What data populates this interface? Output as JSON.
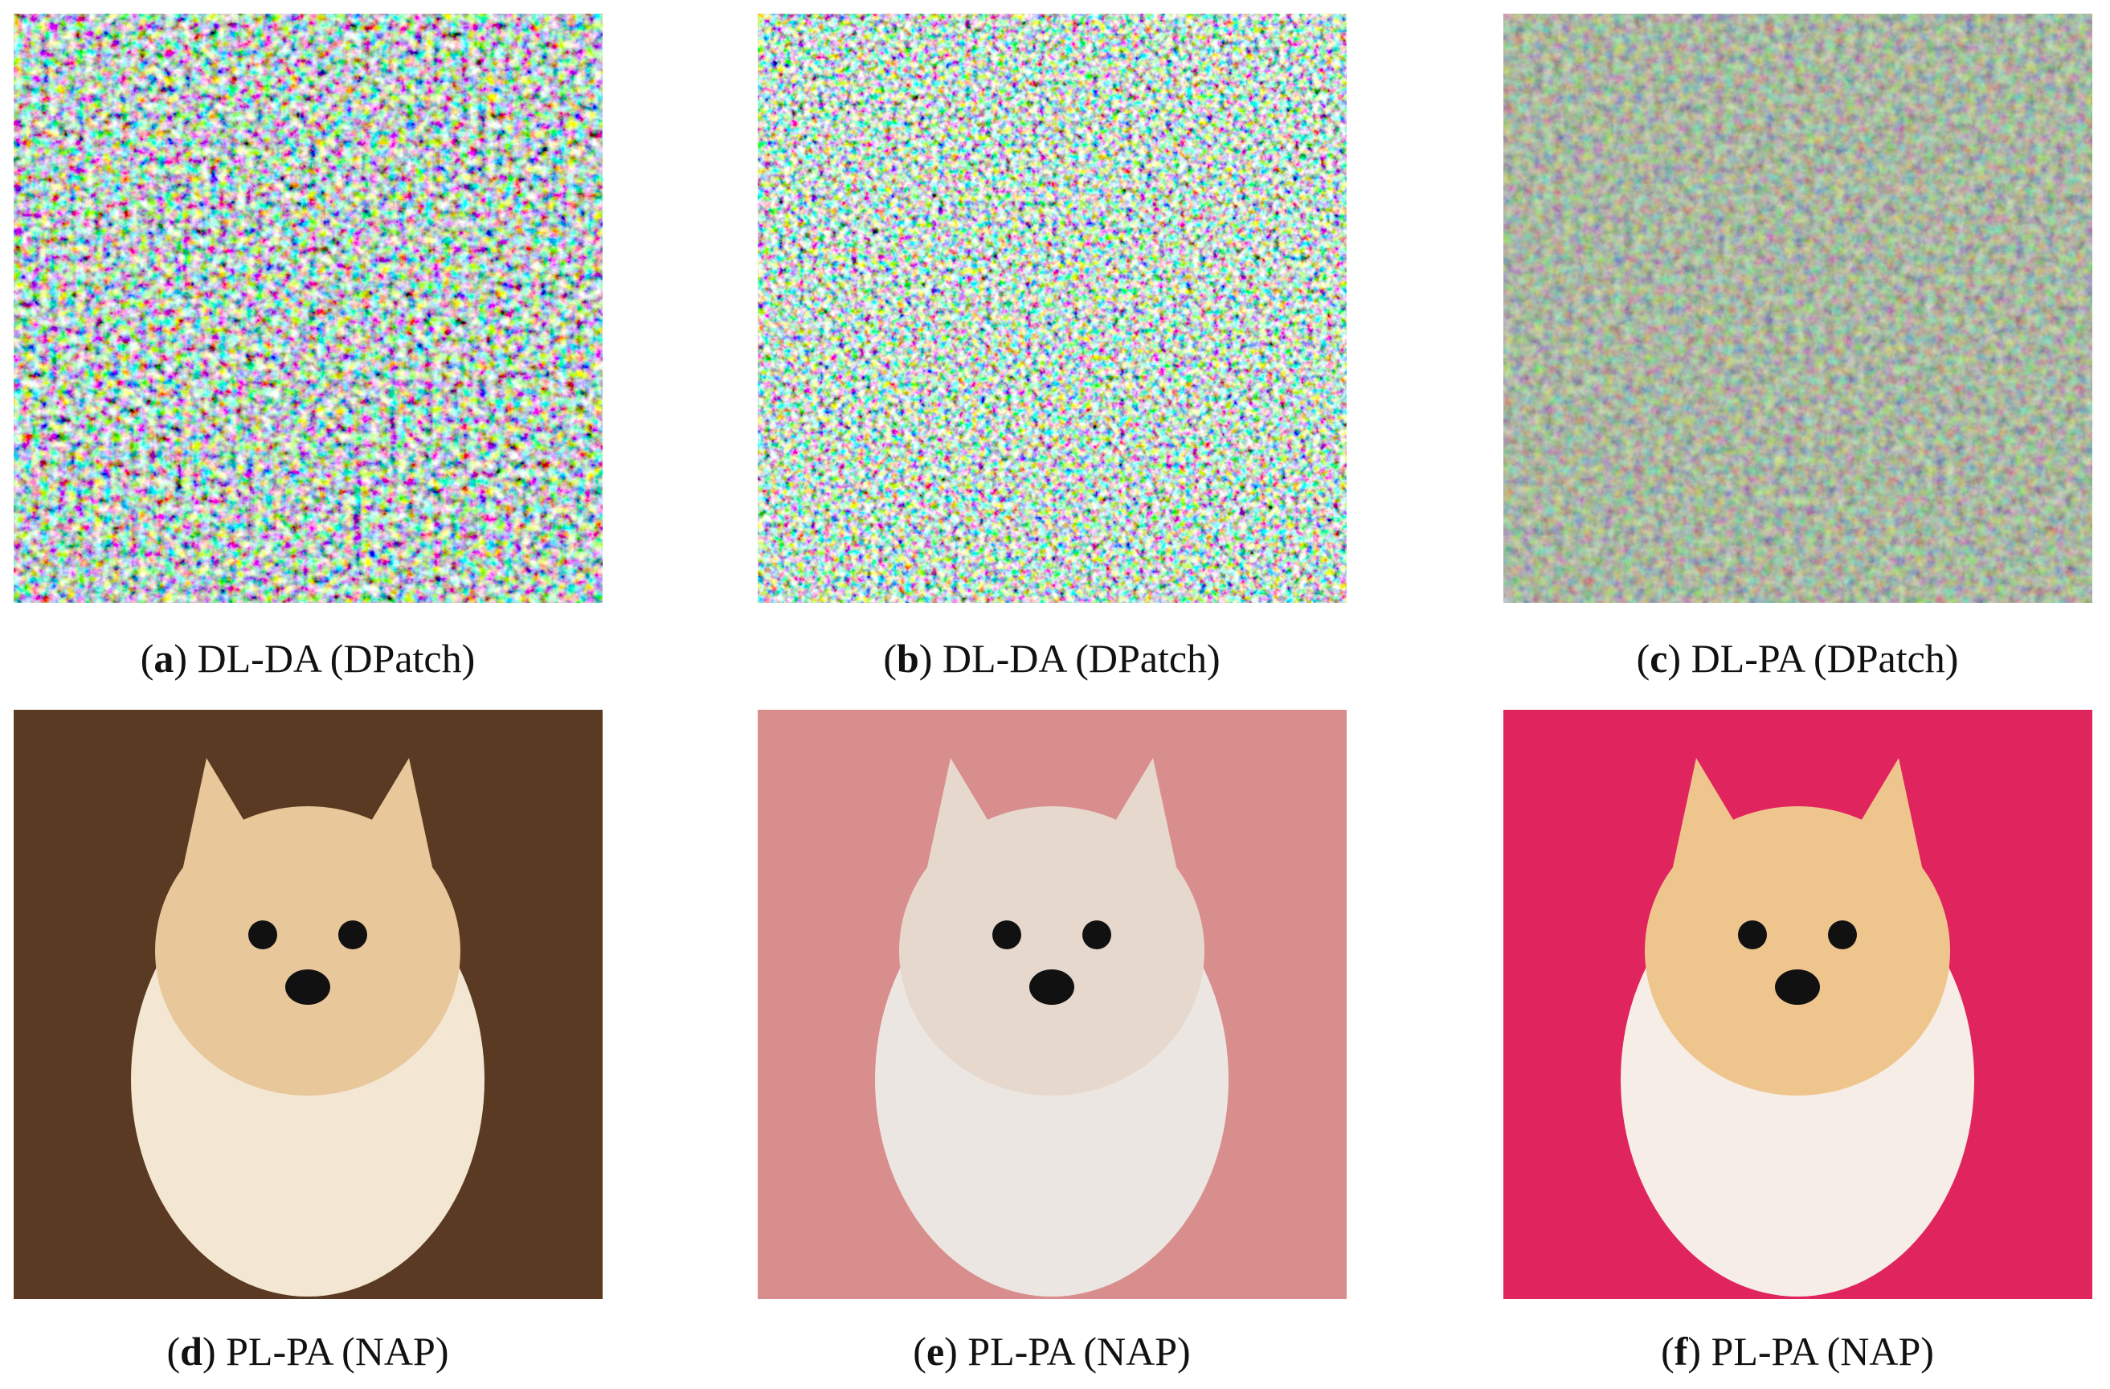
{
  "panels": [
    {
      "caption": [
        "(",
        "a",
        ") DL-DA (DPatch)"
      ]
    },
    {
      "caption": [
        "(",
        "b",
        ") DL-DA (DPatch)"
      ]
    },
    {
      "caption": [
        "(",
        "c",
        ") DL-PA (DPatch)"
      ]
    },
    {
      "caption": [
        "(",
        "d",
        ") PL-PA (NAP)"
      ]
    },
    {
      "caption": [
        "(",
        "e",
        ") PL-PA (NAP)"
      ]
    },
    {
      "caption": [
        "(",
        "f",
        ") PL-PA (NAP)"
      ]
    }
  ]
}
